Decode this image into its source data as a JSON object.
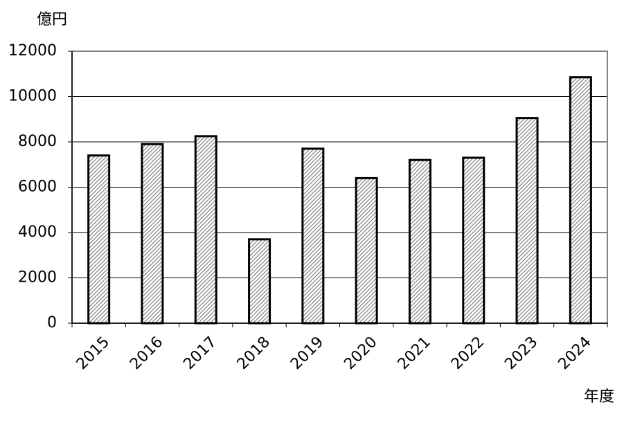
{
  "chart_data": {
    "type": "bar",
    "y_label": "億円",
    "x_label": "年度",
    "categories": [
      "2015",
      "2016",
      "2017",
      "2018",
      "2019",
      "2020",
      "2021",
      "2022",
      "2023",
      "2024"
    ],
    "values": [
      7400,
      7900,
      8250,
      3700,
      7700,
      6400,
      7200,
      7300,
      9050,
      10850
    ],
    "color": "#808080",
    "ylim": [
      0,
      12000
    ],
    "yticks": [
      0,
      2000,
      4000,
      6000,
      8000,
      10000,
      12000
    ],
    "grid": true
  }
}
